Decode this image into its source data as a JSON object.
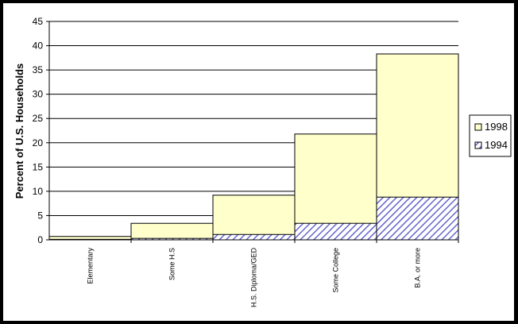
{
  "chart_data": {
    "type": "bar",
    "stacking": "overlaid",
    "categories": [
      "Elementary",
      "Some H.S",
      "H.S. Diploma/GED",
      "Some College",
      "B.A. or more"
    ],
    "series": [
      {
        "name": "1998",
        "values": [
          0.7,
          3.4,
          9.2,
          21.8,
          38.3
        ],
        "color": "#ffffcc",
        "pattern": "solid"
      },
      {
        "name": "1994",
        "values": [
          0.1,
          0.3,
          1.1,
          3.4,
          8.8
        ],
        "color": "#6666cc",
        "pattern": "diagonal-hatch"
      }
    ],
    "title": "",
    "xlabel": "",
    "ylabel": "Percent of U.S. Households",
    "ylim": [
      0,
      45
    ],
    "yticks": [
      0,
      5,
      10,
      15,
      20,
      25,
      30,
      35,
      40,
      45
    ],
    "grid": true,
    "legend": {
      "position": "right",
      "entries": [
        "1998",
        "1994"
      ]
    },
    "colors": {
      "outline": "#000000",
      "plot_background": "#ffffff",
      "frame": "#000000"
    }
  }
}
